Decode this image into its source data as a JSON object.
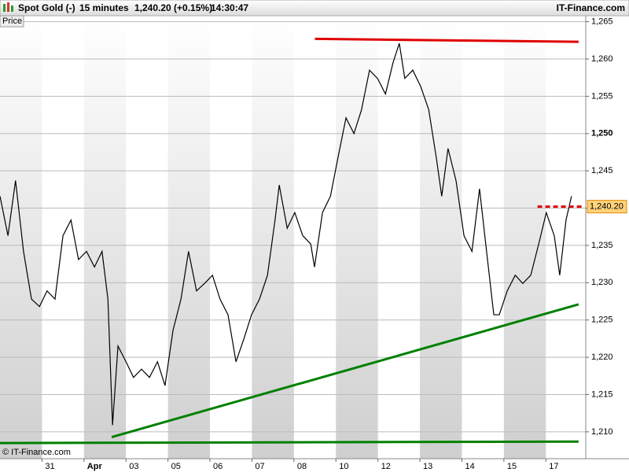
{
  "chart_data": {
    "type": "line",
    "header": {
      "instrument": "Spot Gold (-)",
      "interval": "15 minutes",
      "quote": "1,240.20 (+0.15%)",
      "time": "14:30:47",
      "brand": "IT-Finance.com"
    },
    "axis_label": "Price",
    "copyright": "© IT-Finance.com",
    "last_price": {
      "value": 1240.2,
      "label": "1,240.20"
    },
    "xlim": [
      0,
      13.95
    ],
    "xticks": [
      {
        "value": 1,
        "label": "31"
      },
      {
        "value": 2,
        "label": "Apr"
      },
      {
        "value": 3,
        "label": "03"
      },
      {
        "value": 4,
        "label": "05"
      },
      {
        "value": 5,
        "label": "06"
      },
      {
        "value": 6,
        "label": "07"
      },
      {
        "value": 7,
        "label": "08"
      },
      {
        "value": 8,
        "label": "10"
      },
      {
        "value": 9,
        "label": "12"
      },
      {
        "value": 10,
        "label": "13"
      },
      {
        "value": 11,
        "label": "14"
      },
      {
        "value": 12,
        "label": "15"
      },
      {
        "value": 13,
        "label": "17"
      }
    ],
    "ylim": [
      1206.4,
      1265.8
    ],
    "yticks": [
      {
        "value": 1210,
        "label": "1,210"
      },
      {
        "value": 1215,
        "label": "1,215"
      },
      {
        "value": 1220,
        "label": "1,220"
      },
      {
        "value": 1225,
        "label": "1,225"
      },
      {
        "value": 1230,
        "label": "1,230"
      },
      {
        "value": 1235,
        "label": "1,235"
      },
      {
        "value": 1240,
        "label": "1,240"
      },
      {
        "value": 1245,
        "label": "1,245"
      },
      {
        "value": 1250,
        "label": "1,250"
      },
      {
        "value": 1255,
        "label": "1,255"
      },
      {
        "value": 1260,
        "label": "1,260"
      },
      {
        "value": 1265,
        "label": "1,265"
      }
    ],
    "grid": true,
    "series": [
      {
        "color": "#000000",
        "x": [
          0,
          0.19,
          0.37,
          0.56,
          0.75,
          0.94,
          1.12,
          1.31,
          1.5,
          1.69,
          1.87,
          2.06,
          2.25,
          2.43,
          2.57,
          2.68,
          2.81,
          3.0,
          3.18,
          3.37,
          3.56,
          3.75,
          3.93,
          4.12,
          4.31,
          4.49,
          4.68,
          4.87,
          5.06,
          5.24,
          5.43,
          5.62,
          5.81,
          5.99,
          6.18,
          6.37,
          6.55,
          6.65,
          6.84,
          7.02,
          7.21,
          7.4,
          7.49,
          7.68,
          7.87,
          8.05,
          8.24,
          8.43,
          8.61,
          8.8,
          8.99,
          9.18,
          9.36,
          9.51,
          9.64,
          9.83,
          10.02,
          10.21,
          10.39,
          10.52,
          10.67,
          10.86,
          11.05,
          11.24,
          11.42,
          11.61,
          11.76,
          11.89,
          12.08,
          12.27,
          12.45,
          12.64,
          12.83,
          13.01,
          13.2,
          13.33,
          13.48,
          13.61
        ],
        "values": [
          1241.6,
          1236.3,
          1243.7,
          1234.2,
          1227.8,
          1226.8,
          1228.9,
          1227.8,
          1236.3,
          1238.4,
          1233.1,
          1234.2,
          1232.1,
          1234.2,
          1227.8,
          1210.9,
          1221.5,
          1219.4,
          1217.3,
          1218.4,
          1217.3,
          1219.4,
          1216.2,
          1223.6,
          1227.8,
          1234.2,
          1228.9,
          1229.9,
          1231.0,
          1227.8,
          1225.7,
          1219.4,
          1222.5,
          1225.7,
          1227.8,
          1231.0,
          1238.4,
          1243.1,
          1237.3,
          1239.4,
          1236.3,
          1235.2,
          1232.1,
          1239.4,
          1241.6,
          1246.8,
          1252.1,
          1250.0,
          1253.2,
          1258.5,
          1257.4,
          1255.3,
          1259.5,
          1262.1,
          1257.4,
          1258.5,
          1256.3,
          1253.2,
          1246.8,
          1241.6,
          1248.0,
          1243.7,
          1236.3,
          1234.2,
          1242.6,
          1233.1,
          1225.7,
          1225.7,
          1228.9,
          1231.0,
          1229.9,
          1231.0,
          1235.2,
          1239.4,
          1236.3,
          1231.0,
          1238.4,
          1241.6
        ]
      }
    ],
    "lines": [
      {
        "color": "#e00000",
        "dashed": false,
        "x": [
          7.5,
          13.78
        ],
        "values": [
          1262.7,
          1262.3
        ]
      },
      {
        "color": "#008000",
        "dashed": false,
        "x": [
          2.66,
          13.78
        ],
        "values": [
          1209.3,
          1227.1
        ]
      },
      {
        "color": "#008000",
        "dashed": false,
        "x": [
          0,
          13.78
        ],
        "values": [
          1208.5,
          1208.7
        ]
      },
      {
        "color": "#e00000",
        "dashed": true,
        "x": [
          12.8,
          13.85
        ],
        "values": [
          1240.2,
          1240.2
        ]
      }
    ]
  }
}
